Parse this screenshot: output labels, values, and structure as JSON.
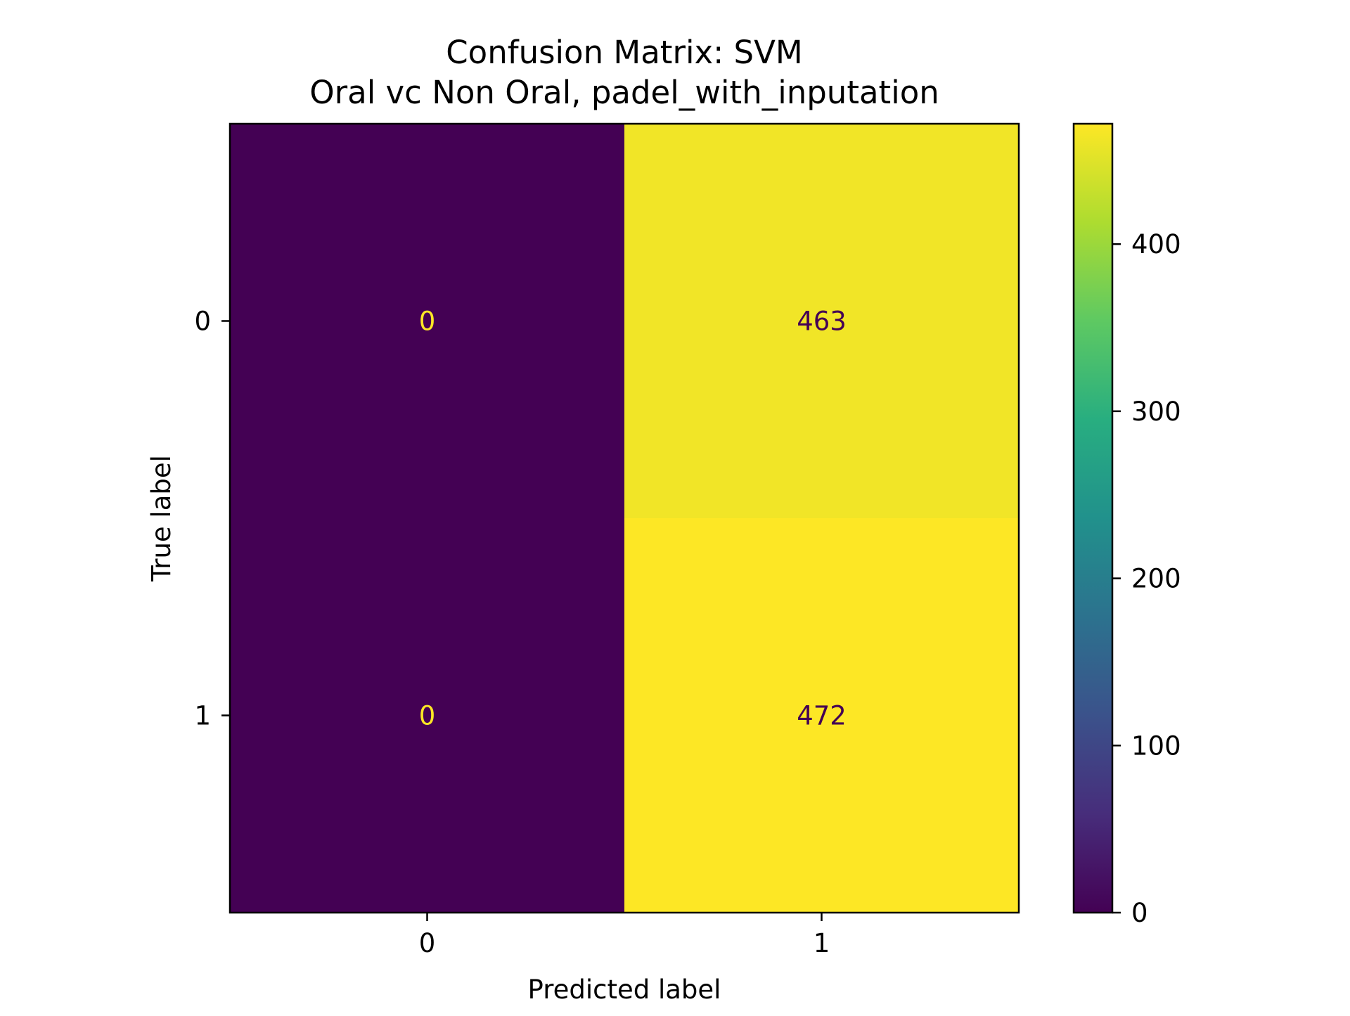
{
  "chart_data": {
    "type": "heatmap",
    "title": "Confusion Matrix: SVM",
    "subtitle": "Oral vc Non Oral, padel_with_inputation",
    "xlabel": "Predicted label",
    "ylabel": "True label",
    "x_categories": [
      "0",
      "1"
    ],
    "y_categories": [
      "0",
      "1"
    ],
    "matrix": [
      [
        0,
        463
      ],
      [
        0,
        472
      ]
    ],
    "colormap": "viridis",
    "colorbar": {
      "min": 0,
      "max": 472,
      "ticks": [
        0,
        100,
        200,
        300,
        400
      ],
      "tick_labels": [
        "0",
        "100",
        "200",
        "300",
        "400"
      ]
    },
    "grid": false,
    "colors": {
      "low": "#440154",
      "high": "#fde725",
      "text_on_dark": "#fde725",
      "text_on_light": "#440154"
    }
  }
}
